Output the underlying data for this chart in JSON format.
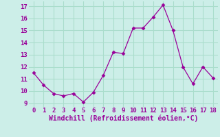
{
  "x": [
    0,
    1,
    2,
    3,
    4,
    5,
    6,
    7,
    8,
    9,
    10,
    11,
    12,
    13,
    14,
    15,
    16,
    17,
    18
  ],
  "y": [
    11.5,
    10.5,
    9.8,
    9.6,
    9.8,
    9.1,
    9.9,
    11.3,
    13.2,
    13.1,
    15.2,
    15.2,
    16.1,
    17.1,
    15.0,
    12.0,
    10.6,
    12.0,
    11.1
  ],
  "line_color": "#990099",
  "marker": "D",
  "marker_size": 2.5,
  "background_color": "#cceee8",
  "grid_color": "#aaddcc",
  "xlabel": "Windchill (Refroidissement éolien,°C)",
  "xlabel_color": "#990099",
  "tick_color": "#990099",
  "ylim": [
    8.7,
    17.4
  ],
  "xlim": [
    -0.5,
    18.5
  ],
  "yticks": [
    9,
    10,
    11,
    12,
    13,
    14,
    15,
    16,
    17
  ],
  "xticks": [
    0,
    1,
    2,
    3,
    4,
    5,
    6,
    7,
    8,
    9,
    10,
    11,
    12,
    13,
    14,
    15,
    16,
    17,
    18
  ],
  "xlabel_fontsize": 7,
  "tick_fontsize": 6.5
}
